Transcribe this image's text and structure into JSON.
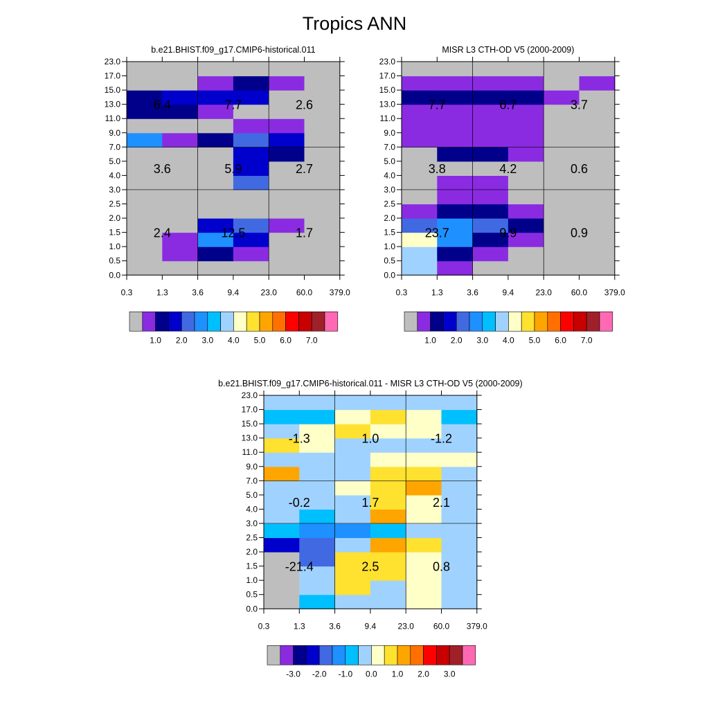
{
  "title": "Tropics ANN",
  "chart_data": [
    {
      "type": "heatmap",
      "title": "b.e21.BHIST.f09_g17.CMIP6-historical.011",
      "x_ticks": [
        "0.3",
        "1.3",
        "3.6",
        "9.4",
        "23.0",
        "60.0",
        "379.0"
      ],
      "y_ticks": [
        "0.0",
        "0.5",
        "1.0",
        "1.5",
        "2.0",
        "2.5",
        "3.0",
        "4.0",
        "5.0",
        "7.0",
        "9.0",
        "11.0",
        "13.0",
        "15.0",
        "17.0",
        "23.0"
      ],
      "grid": true,
      "cells": [
        [
          0,
          0,
          0,
          0,
          0,
          0
        ],
        [
          0,
          1,
          2,
          1,
          0,
          0
        ],
        [
          0,
          1,
          5,
          3,
          0,
          0
        ],
        [
          0,
          0,
          3,
          4,
          1,
          0
        ],
        [
          0,
          0,
          0,
          0,
          0,
          0
        ],
        [
          0,
          0,
          0,
          0,
          0,
          0
        ],
        [
          0,
          0,
          0,
          4,
          0,
          0
        ],
        [
          0,
          0,
          0,
          3,
          0,
          0
        ],
        [
          0,
          0,
          0,
          3,
          2,
          0
        ],
        [
          5,
          1,
          2,
          4,
          3,
          0
        ],
        [
          0,
          0,
          0,
          1,
          1,
          0
        ],
        [
          2,
          2,
          1,
          0,
          0,
          0
        ],
        [
          2,
          3,
          3,
          3,
          0,
          0
        ],
        [
          0,
          0,
          1,
          2,
          1,
          0
        ],
        [
          0,
          0,
          0,
          0,
          0,
          0
        ]
      ],
      "group_labels": [
        {
          "x_group": 0,
          "y_group": 0,
          "text": "2.4"
        },
        {
          "x_group": 1,
          "y_group": 0,
          "text": "12.5"
        },
        {
          "x_group": 2,
          "y_group": 0,
          "text": "1.7"
        },
        {
          "x_group": 0,
          "y_group": 1,
          "text": "3.6"
        },
        {
          "x_group": 1,
          "y_group": 1,
          "text": "5.9"
        },
        {
          "x_group": 2,
          "y_group": 1,
          "text": "2.7"
        },
        {
          "x_group": 0,
          "y_group": 2,
          "text": "6.4"
        },
        {
          "x_group": 1,
          "y_group": 2,
          "text": "7.7"
        },
        {
          "x_group": 2,
          "y_group": 2,
          "text": "2.6"
        }
      ],
      "colorbar_labels": [
        "1.0",
        "2.0",
        "3.0",
        "4.0",
        "5.0",
        "6.0",
        "7.0"
      ],
      "colors": [
        "#bebebe",
        "#8a2be2",
        "#00008b",
        "#0000cd",
        "#4169e1",
        "#1e90ff",
        "#00bfff",
        "#a0d2ff",
        "#ffffc8",
        "#ffe130",
        "#ffa500",
        "#ff7000",
        "#ff0000",
        "#c80000",
        "#a0202a",
        "#ff69b4"
      ]
    },
    {
      "type": "heatmap",
      "title": "MISR L3 CTH-OD V5 (2000-2009)",
      "x_ticks": [
        "0.3",
        "1.3",
        "3.6",
        "9.4",
        "23.0",
        "60.0",
        "379.0"
      ],
      "y_ticks": [
        "0.0",
        "0.5",
        "1.0",
        "1.5",
        "2.0",
        "2.5",
        "3.0",
        "4.0",
        "5.0",
        "7.0",
        "9.0",
        "11.0",
        "13.0",
        "15.0",
        "17.0",
        "23.0"
      ],
      "grid": true,
      "cells": [
        [
          7,
          1,
          0,
          0,
          0,
          0
        ],
        [
          7,
          2,
          1,
          0,
          0,
          0
        ],
        [
          8,
          5,
          2,
          1,
          0,
          0
        ],
        [
          4,
          5,
          4,
          2,
          0,
          0
        ],
        [
          1,
          2,
          2,
          1,
          0,
          0
        ],
        [
          0,
          1,
          1,
          0,
          0,
          0
        ],
        [
          0,
          1,
          1,
          0,
          0,
          0
        ],
        [
          0,
          0,
          0,
          0,
          0,
          0
        ],
        [
          0,
          2,
          2,
          1,
          0,
          0
        ],
        [
          1,
          1,
          1,
          1,
          0,
          0
        ],
        [
          1,
          1,
          1,
          1,
          0,
          0
        ],
        [
          1,
          1,
          1,
          1,
          0,
          0
        ],
        [
          2,
          2,
          2,
          2,
          1,
          0
        ],
        [
          1,
          1,
          1,
          1,
          0,
          1
        ],
        [
          0,
          0,
          0,
          0,
          0,
          0
        ]
      ],
      "group_labels": [
        {
          "x_group": 0,
          "y_group": 0,
          "text": "23.7"
        },
        {
          "x_group": 1,
          "y_group": 0,
          "text": "9.9"
        },
        {
          "x_group": 2,
          "y_group": 0,
          "text": "0.9"
        },
        {
          "x_group": 0,
          "y_group": 1,
          "text": "3.8"
        },
        {
          "x_group": 1,
          "y_group": 1,
          "text": "4.2"
        },
        {
          "x_group": 2,
          "y_group": 1,
          "text": "0.6"
        },
        {
          "x_group": 0,
          "y_group": 2,
          "text": "7.7"
        },
        {
          "x_group": 1,
          "y_group": 2,
          "text": "6.7"
        },
        {
          "x_group": 2,
          "y_group": 2,
          "text": "3.7"
        }
      ],
      "colorbar_labels": [
        "1.0",
        "2.0",
        "3.0",
        "4.0",
        "5.0",
        "6.0",
        "7.0"
      ],
      "colors": [
        "#bebebe",
        "#8a2be2",
        "#00008b",
        "#0000cd",
        "#4169e1",
        "#1e90ff",
        "#00bfff",
        "#a0d2ff",
        "#ffffc8",
        "#ffe130",
        "#ffa500",
        "#ff7000",
        "#ff0000",
        "#c80000",
        "#a0202a",
        "#ff69b4"
      ]
    },
    {
      "type": "heatmap",
      "title": "b.e21.BHIST.f09_g17.CMIP6-historical.011 - MISR L3 CTH-OD V5 (2000-2009)",
      "x_ticks": [
        "0.3",
        "1.3",
        "3.6",
        "9.4",
        "23.0",
        "60.0",
        "379.0"
      ],
      "y_ticks": [
        "0.0",
        "0.5",
        "1.0",
        "1.5",
        "2.0",
        "2.5",
        "3.0",
        "4.0",
        "5.0",
        "7.0",
        "9.0",
        "11.0",
        "13.0",
        "15.0",
        "17.0",
        "23.0"
      ],
      "grid": true,
      "cells": [
        [
          0,
          6,
          7,
          7,
          8,
          7
        ],
        [
          0,
          7,
          9,
          7,
          8,
          7
        ],
        [
          0,
          7,
          9,
          9,
          8,
          7
        ],
        [
          0,
          4,
          9,
          9,
          8,
          7
        ],
        [
          3,
          4,
          7,
          10,
          9,
          7
        ],
        [
          6,
          5,
          5,
          6,
          7,
          7
        ],
        [
          7,
          6,
          7,
          10,
          8,
          7
        ],
        [
          7,
          7,
          7,
          9,
          8,
          7
        ],
        [
          7,
          7,
          8,
          9,
          10,
          7
        ],
        [
          10,
          7,
          7,
          9,
          9,
          7
        ],
        [
          7,
          7,
          7,
          8,
          8,
          8
        ],
        [
          9,
          8,
          7,
          7,
          7,
          7
        ],
        [
          7,
          8,
          9,
          8,
          8,
          7
        ],
        [
          6,
          6,
          8,
          9,
          8,
          6
        ],
        [
          7,
          7,
          7,
          7,
          7,
          7
        ]
      ],
      "group_labels": [
        {
          "x_group": 0,
          "y_group": 0,
          "text": "-21.4"
        },
        {
          "x_group": 1,
          "y_group": 0,
          "text": "2.5"
        },
        {
          "x_group": 2,
          "y_group": 0,
          "text": "0.8"
        },
        {
          "x_group": 0,
          "y_group": 1,
          "text": "-0.2"
        },
        {
          "x_group": 1,
          "y_group": 1,
          "text": "1.7"
        },
        {
          "x_group": 2,
          "y_group": 1,
          "text": "2.1"
        },
        {
          "x_group": 0,
          "y_group": 2,
          "text": "-1.3"
        },
        {
          "x_group": 1,
          "y_group": 2,
          "text": "1.0"
        },
        {
          "x_group": 2,
          "y_group": 2,
          "text": "-1.2"
        }
      ],
      "colorbar_labels": [
        "-3.0",
        "-2.0",
        "-1.0",
        "0.0",
        "1.0",
        "2.0",
        "3.0"
      ],
      "colors": [
        "#bebebe",
        "#8a2be2",
        "#00008b",
        "#0000cd",
        "#4169e1",
        "#1e90ff",
        "#00bfff",
        "#a0d2ff",
        "#ffffc8",
        "#ffe130",
        "#ffa500",
        "#ff7000",
        "#ff0000",
        "#c80000",
        "#a0202a",
        "#ff69b4"
      ]
    }
  ]
}
